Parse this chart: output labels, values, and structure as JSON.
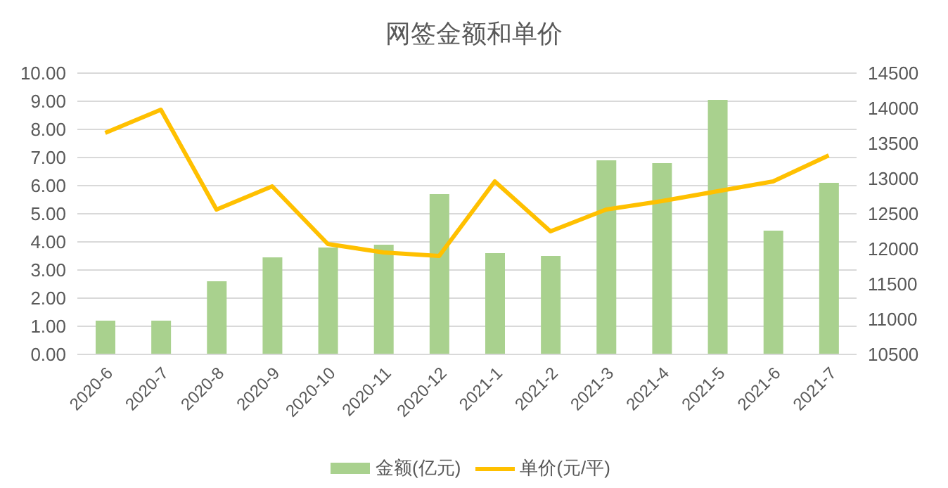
{
  "chart_data": {
    "type": "bar",
    "title": "网签金额和单价",
    "categories": [
      "2020-6",
      "2020-7",
      "2020-8",
      "2020-9",
      "2020-10",
      "2020-11",
      "2020-12",
      "2021-1",
      "2021-2",
      "2021-3",
      "2021-4",
      "2021-5",
      "2021-6",
      "2021-7"
    ],
    "series": [
      {
        "name": "金额(亿元)",
        "color": "#a9d18e",
        "values": [
          1.2,
          1.2,
          2.6,
          3.45,
          3.8,
          3.9,
          5.7,
          3.6,
          3.5,
          6.9,
          6.8,
          9.05,
          4.4,
          6.1
        ]
      },
      {
        "name": "单价(元/平)",
        "type": "line",
        "axis": "y2",
        "color": "#ffc000",
        "values": [
          13650,
          13980,
          12560,
          12890,
          12070,
          11950,
          11900,
          12960,
          12250,
          12560,
          12680,
          12820,
          12960,
          13330
        ]
      }
    ],
    "ylim": [
      0,
      10
    ],
    "yticks": [
      {
        "value": 0,
        "label": "0.00"
      },
      {
        "value": 1,
        "label": "1.00"
      },
      {
        "value": 2,
        "label": "2.00"
      },
      {
        "value": 3,
        "label": "3.00"
      },
      {
        "value": 4,
        "label": "4.00"
      },
      {
        "value": 5,
        "label": "5.00"
      },
      {
        "value": 6,
        "label": "6.00"
      },
      {
        "value": 7,
        "label": "7.00"
      },
      {
        "value": 8,
        "label": "8.00"
      },
      {
        "value": 9,
        "label": "9.00"
      },
      {
        "value": 10,
        "label": "10.00"
      }
    ],
    "y2lim": [
      10500,
      14500
    ],
    "y2ticks": [
      10500,
      11000,
      11500,
      12000,
      12500,
      13000,
      13500,
      14000,
      14500
    ],
    "grid": "y",
    "legend": "bottom",
    "marker": "none"
  }
}
